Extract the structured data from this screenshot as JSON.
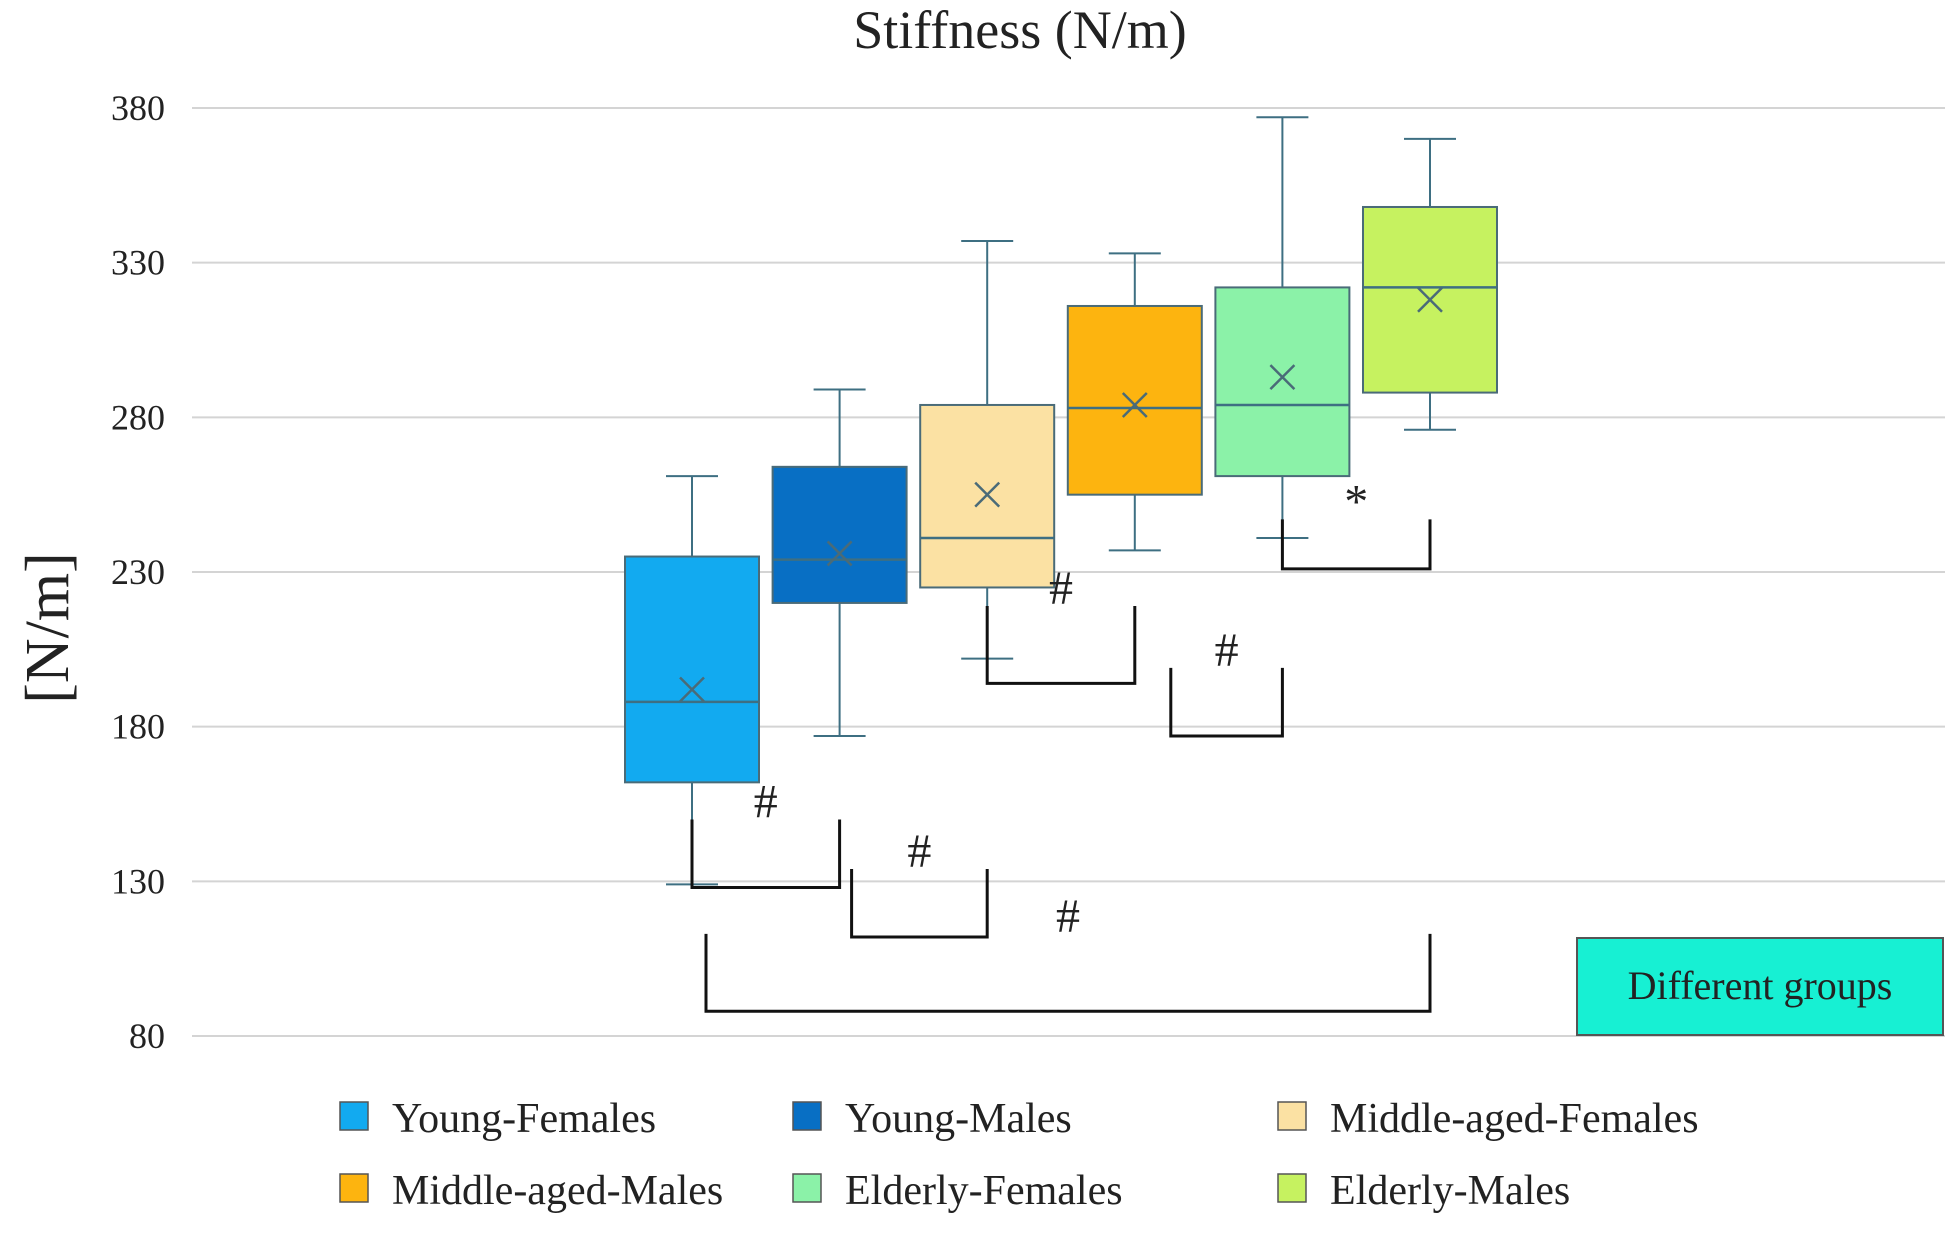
{
  "chart_data": {
    "type": "box",
    "title": "Stiffness (N/m)",
    "xlabel": "",
    "ylabel": "[N/m]",
    "ylim": [
      80,
      380
    ],
    "yticks": [
      80,
      130,
      180,
      230,
      280,
      330,
      380
    ],
    "grid": true,
    "legend_position": "bottom",
    "note": "Different groups",
    "groups": [
      {
        "name": "Young-Females",
        "color": "#12AAF0",
        "whisker_low": 129,
        "q1": 162,
        "median": 188,
        "q3": 235,
        "whisker_high": 261,
        "mean": 192
      },
      {
        "name": "Young-Males",
        "color": "#086FC4",
        "whisker_low": 177,
        "q1": 220,
        "median": 234,
        "q3": 264,
        "whisker_high": 289,
        "mean": 236
      },
      {
        "name": "Middle-aged-Females",
        "color": "#FBE1A3",
        "whisker_low": 202,
        "q1": 225,
        "median": 241,
        "q3": 284,
        "whisker_high": 337,
        "mean": 255
      },
      {
        "name": "Middle-aged-Males",
        "color": "#FDB40F",
        "whisker_low": 237,
        "q1": 255,
        "median": 283,
        "q3": 316,
        "whisker_high": 333,
        "mean": 284
      },
      {
        "name": "Elderly-Females",
        "color": "#8BF2A8",
        "whisker_low": 241,
        "q1": 261,
        "median": 284,
        "q3": 322,
        "whisker_high": 377,
        "mean": 293
      },
      {
        "name": "Elderly-Males",
        "color": "#C6F260",
        "whisker_low": 276,
        "q1": 288,
        "median": 322,
        "q3": 348,
        "whisker_high": 370,
        "mean": 318
      }
    ],
    "significance": [
      {
        "from": "Young-Females",
        "to": "Young-Males",
        "symbol": "#"
      },
      {
        "from": "Young-Males",
        "to": "Middle-aged-Females",
        "symbol": "#"
      },
      {
        "from": "Young-Females",
        "to": "Elderly-Males",
        "symbol": "#"
      },
      {
        "from": "Middle-aged-Females",
        "to": "Middle-aged-Males",
        "symbol": "#"
      },
      {
        "from": "Middle-aged-Males",
        "to": "Elderly-Females",
        "symbol": "#"
      },
      {
        "from": "Elderly-Females",
        "to": "Elderly-Males",
        "symbol": "*"
      }
    ]
  }
}
